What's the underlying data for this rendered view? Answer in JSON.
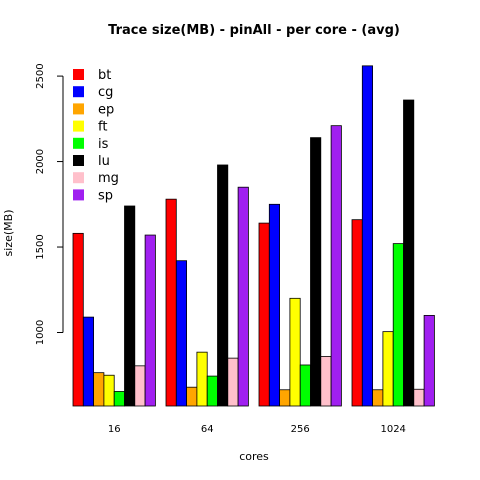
{
  "chart_data": {
    "type": "bar",
    "title": "Trace size(MB) - pinAll - per core - (avg)",
    "xlabel": "cores",
    "ylabel": "size(MB)",
    "categories": [
      "16",
      "64",
      "256",
      "1024"
    ],
    "yticks": [
      1000,
      1500,
      2000,
      2500
    ],
    "ylim": [
      570,
      2600
    ],
    "legend_position": "top-left",
    "series": [
      {
        "name": "bt",
        "color": "#ff0000",
        "values": [
          1580,
          1780,
          1640,
          1660
        ]
      },
      {
        "name": "cg",
        "color": "#0000ff",
        "values": [
          1090,
          1420,
          1750,
          2560
        ]
      },
      {
        "name": "ep",
        "color": "#ffa500",
        "values": [
          765,
          680,
          665,
          665
        ]
      },
      {
        "name": "ft",
        "color": "#ffff00",
        "values": [
          750,
          885,
          1200,
          1005
        ]
      },
      {
        "name": "is",
        "color": "#00ff00",
        "values": [
          655,
          745,
          810,
          1520
        ]
      },
      {
        "name": "lu",
        "color": "#000000",
        "values": [
          1740,
          1980,
          2140,
          2360
        ]
      },
      {
        "name": "mg",
        "color": "#ffc0cb",
        "values": [
          805,
          850,
          860,
          668
        ]
      },
      {
        "name": "sp",
        "color": "#a020f0",
        "values": [
          1570,
          1850,
          2210,
          1100
        ]
      }
    ]
  }
}
